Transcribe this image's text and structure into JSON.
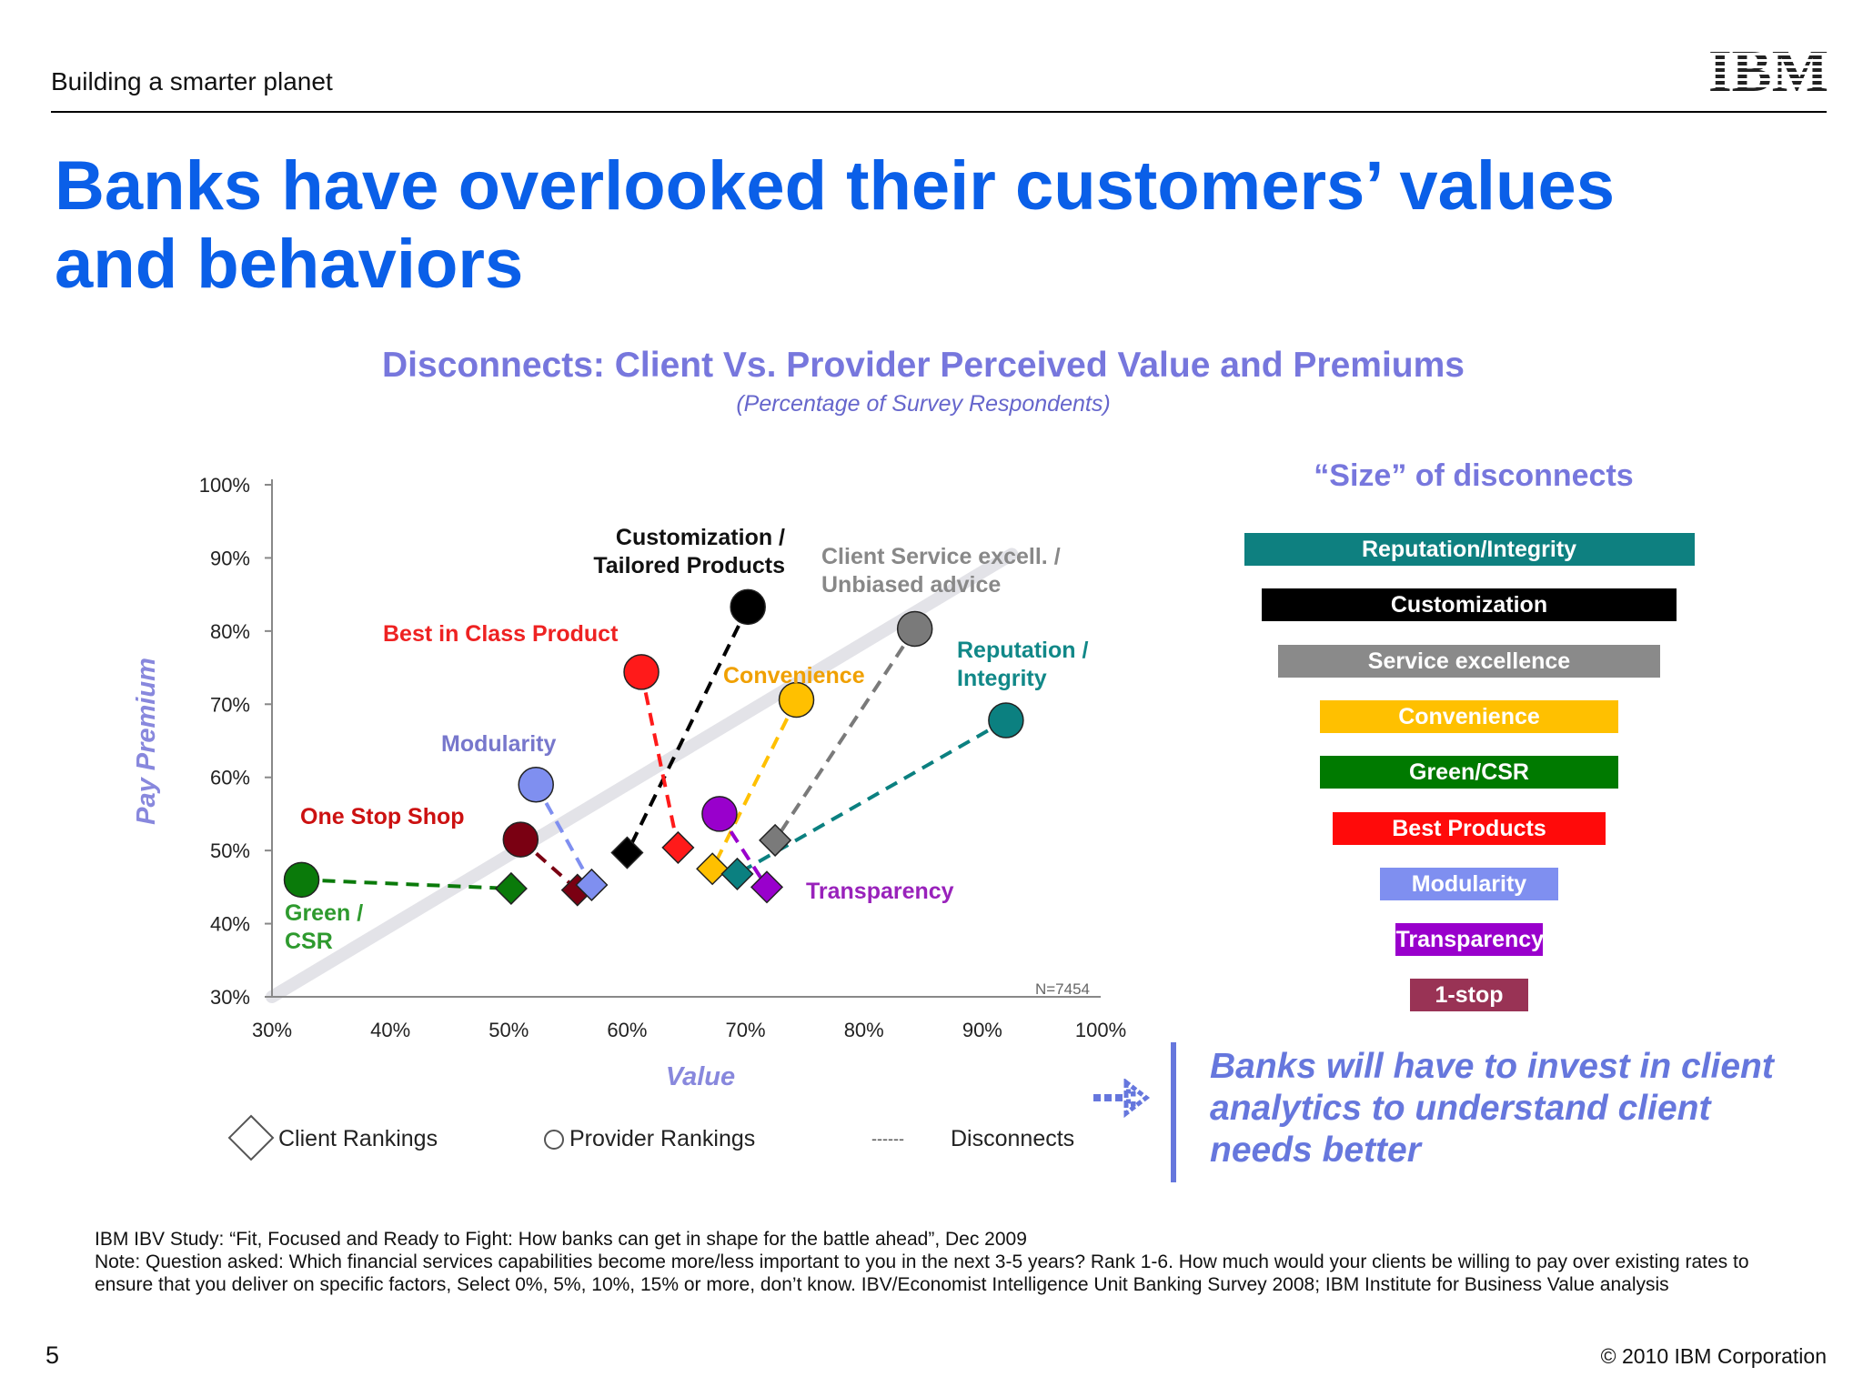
{
  "header": {
    "tagline": "Building a smarter planet",
    "logo_text": "IBM"
  },
  "slide": {
    "title_line1": "Banks have overlooked their customers’ values",
    "title_line2": "and behaviors",
    "page_number": "5",
    "copyright": "© 2010 IBM Corporation"
  },
  "chart_data": [
    {
      "type": "scatter",
      "title": "Disconnects: Client Vs. Provider Perceived Value and Premiums",
      "subtitle": "(Percentage of Survey Respondents)",
      "xlabel": "Value",
      "ylabel": "Pay Premium",
      "xlim": [
        30,
        100
      ],
      "ylim": [
        30,
        100
      ],
      "x_ticks": [
        "30%",
        "40%",
        "50%",
        "60%",
        "70%",
        "80%",
        "90%",
        "100%"
      ],
      "y_ticks": [
        "30%",
        "40%",
        "50%",
        "60%",
        "70%",
        "80%",
        "90%",
        "100%"
      ],
      "sample_note": "N=7454",
      "series": [
        {
          "label": "Green / CSR",
          "color": "#0a7a0a",
          "label_color": "#2e9a2e",
          "provider": {
            "x": 32.5,
            "y": 46
          },
          "client": {
            "x": 50.2,
            "y": 44.8
          }
        },
        {
          "label": "One Stop Shop",
          "color": "#7a0012",
          "label_color": "#cc1111",
          "provider": {
            "x": 51,
            "y": 51.5
          },
          "client": {
            "x": 55.8,
            "y": 44.6
          }
        },
        {
          "label": "Modularity",
          "color": "#7f8ff0",
          "label_color": "#7777cc",
          "provider": {
            "x": 52.3,
            "y": 59
          },
          "client": {
            "x": 57,
            "y": 45.3
          }
        },
        {
          "label": "Customization / Tailored Products",
          "color": "#000000",
          "label_color": "#111111",
          "provider": {
            "x": 70.2,
            "y": 83.3
          },
          "client": {
            "x": 60,
            "y": 49.7
          }
        },
        {
          "label": "Best in Class Product",
          "color": "#ff1a1a",
          "label_color": "#ee2222",
          "provider": {
            "x": 61.2,
            "y": 74.4
          },
          "client": {
            "x": 64.3,
            "y": 50.4
          }
        },
        {
          "label": "Convenience",
          "color": "#ffc000",
          "label_color": "#f0a000",
          "provider": {
            "x": 74.3,
            "y": 70.6
          },
          "client": {
            "x": 67.2,
            "y": 47.5
          }
        },
        {
          "label": "Client Service excell. / Unbiased advice",
          "color": "#7a7a7a",
          "label_color": "#888888",
          "provider": {
            "x": 84.3,
            "y": 80.3
          },
          "client": {
            "x": 72.5,
            "y": 51.4
          }
        },
        {
          "label": "Reputation / Integrity",
          "color": "#0b8080",
          "label_color": "#118888",
          "provider": {
            "x": 92,
            "y": 67.8
          },
          "client": {
            "x": 69.3,
            "y": 46.8
          }
        },
        {
          "label": "Transparency",
          "color": "#9900cc",
          "label_color": "#9922bb",
          "provider": {
            "x": 67.8,
            "y": 55
          },
          "client": {
            "x": 71.8,
            "y": 45
          }
        }
      ],
      "legend": {
        "client": "Client Rankings",
        "provider": "Provider Rankings",
        "disconnect": "Disconnects",
        "dash_sample": "------"
      }
    },
    {
      "type": "bar",
      "title": "“Size” of disconnects",
      "bars": [
        {
          "label": "Reputation/Integrity",
          "color": "#0e8080",
          "value": 375
        },
        {
          "label": "Customization",
          "color": "#000000",
          "value": 345
        },
        {
          "label": "Service excellence",
          "color": "#8a8a8a",
          "value": 318
        },
        {
          "label": "Convenience",
          "color": "#ffc000",
          "value": 248
        },
        {
          "label": "Green/CSR",
          "color": "#007a00",
          "value": 248
        },
        {
          "label": "Best Products",
          "color": "#ff0a0a",
          "value": 228
        },
        {
          "label": "Modularity",
          "color": "#7f8ff0",
          "value": 148
        },
        {
          "label": "Transparency",
          "color": "#9900cc",
          "value": 122
        },
        {
          "label": "1-stop",
          "color": "#993355",
          "value": 98
        }
      ]
    }
  ],
  "callout": {
    "text": "Banks will have to invest in client analytics to understand client needs better"
  },
  "footnote": {
    "line1": "IBM IBV Study: “Fit, Focused and Ready to Fight: How banks can get in shape for the battle ahead”, Dec 2009",
    "line2": "Note: Question asked: Which financial services capabilities become more/less important to you in the next 3-5 years?  Rank 1-6. How much would your clients be willing to pay over existing rates to ensure that you deliver on specific factors, Select 0%, 5%, 10%, 15% or more, don’t know.  IBV/Economist Intelligence Unit Banking Survey 2008; IBM Institute for Business Value analysis"
  }
}
